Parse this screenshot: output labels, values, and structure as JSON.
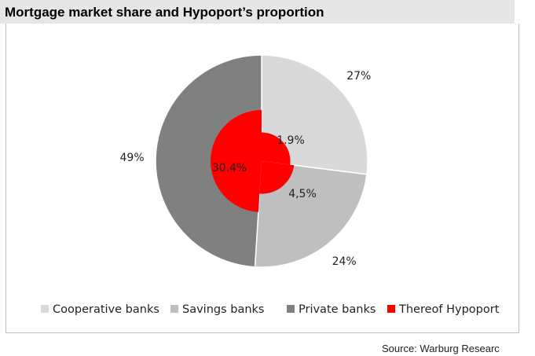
{
  "title": "Mortgage market share and Hypoport’s proportion",
  "source": "Source: Warburg Researc",
  "colors": {
    "cooperative": "#d9d9d9",
    "savings": "#bfbfbf",
    "private": "#808080",
    "hypoport": "#ff0000"
  },
  "chart_data": {
    "type": "pie",
    "title": "Mortgage market share and Hypoport’s proportion",
    "series": [
      {
        "name": "Market share",
        "values": [
          27,
          24,
          49
        ],
        "labels": [
          "27%",
          "24%",
          "49%"
        ],
        "categories": [
          "Cooperative banks",
          "Savings banks",
          "Private banks"
        ]
      },
      {
        "name": "Thereof Hypoport",
        "values": [
          1.9,
          4.5,
          30.4
        ],
        "labels": [
          "1.9%",
          "4,5%",
          "30.4%"
        ],
        "categories": [
          "Cooperative banks",
          "Savings banks",
          "Private banks"
        ]
      }
    ],
    "legend": {
      "position": "bottom",
      "items": [
        "Cooperative banks",
        "Savings banks",
        "Private banks",
        "Thereof Hypoport"
      ]
    }
  }
}
